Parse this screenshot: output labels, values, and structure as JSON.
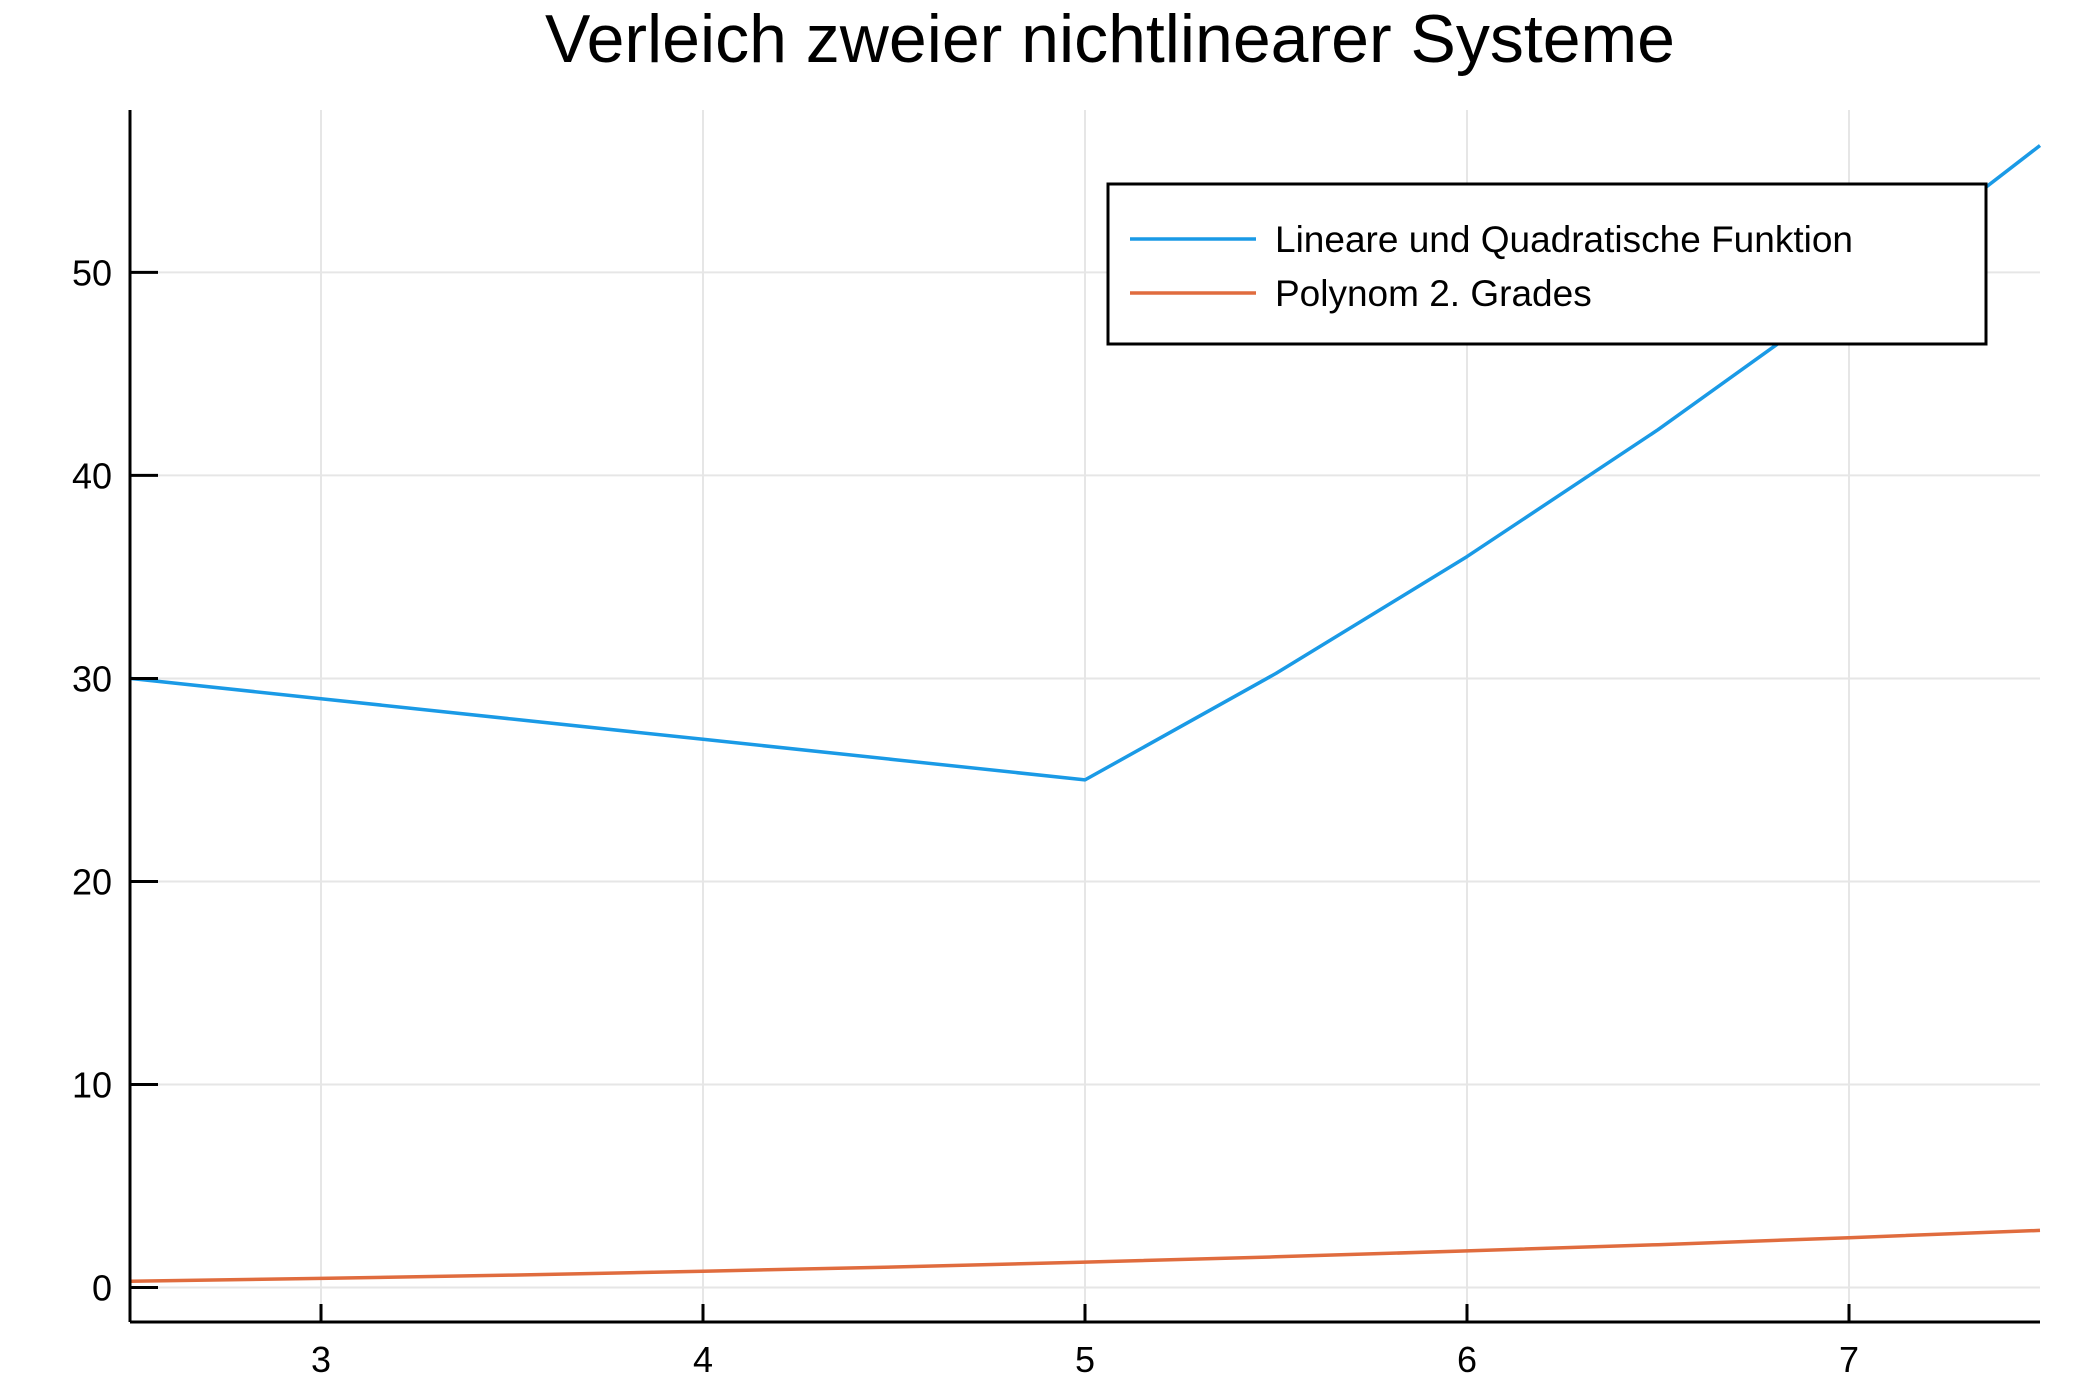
{
  "chart_data": {
    "type": "line",
    "title": "Verleich zweier nichtlinearer Systeme",
    "xlabel": "",
    "ylabel": "",
    "xlim": [
      2.5,
      7.5
    ],
    "ylim": [
      -1.7,
      58
    ],
    "xticks": [
      3,
      4,
      5,
      6,
      7
    ],
    "yticks": [
      0,
      10,
      20,
      30,
      40,
      50
    ],
    "grid": true,
    "legend_position": "top-right",
    "series": [
      {
        "name": "Lineare und Quadratische Funktion",
        "color": "#1a9ae6",
        "x": [
          2.5,
          3,
          3.5,
          4,
          4.5,
          5,
          5.5,
          6,
          6.5,
          7,
          7.5
        ],
        "y": [
          30,
          29,
          28,
          27,
          26,
          25,
          30.25,
          36,
          42.25,
          49,
          56.25
        ]
      },
      {
        "name": "Polynom 2. Grades",
        "color": "#e06c3e",
        "x": [
          2.5,
          3,
          3.5,
          4,
          4.5,
          5,
          5.5,
          6,
          6.5,
          7,
          7.5
        ],
        "y": [
          0.31,
          0.45,
          0.61,
          0.8,
          1.01,
          1.25,
          1.51,
          1.8,
          2.11,
          2.45,
          2.81
        ]
      }
    ]
  }
}
